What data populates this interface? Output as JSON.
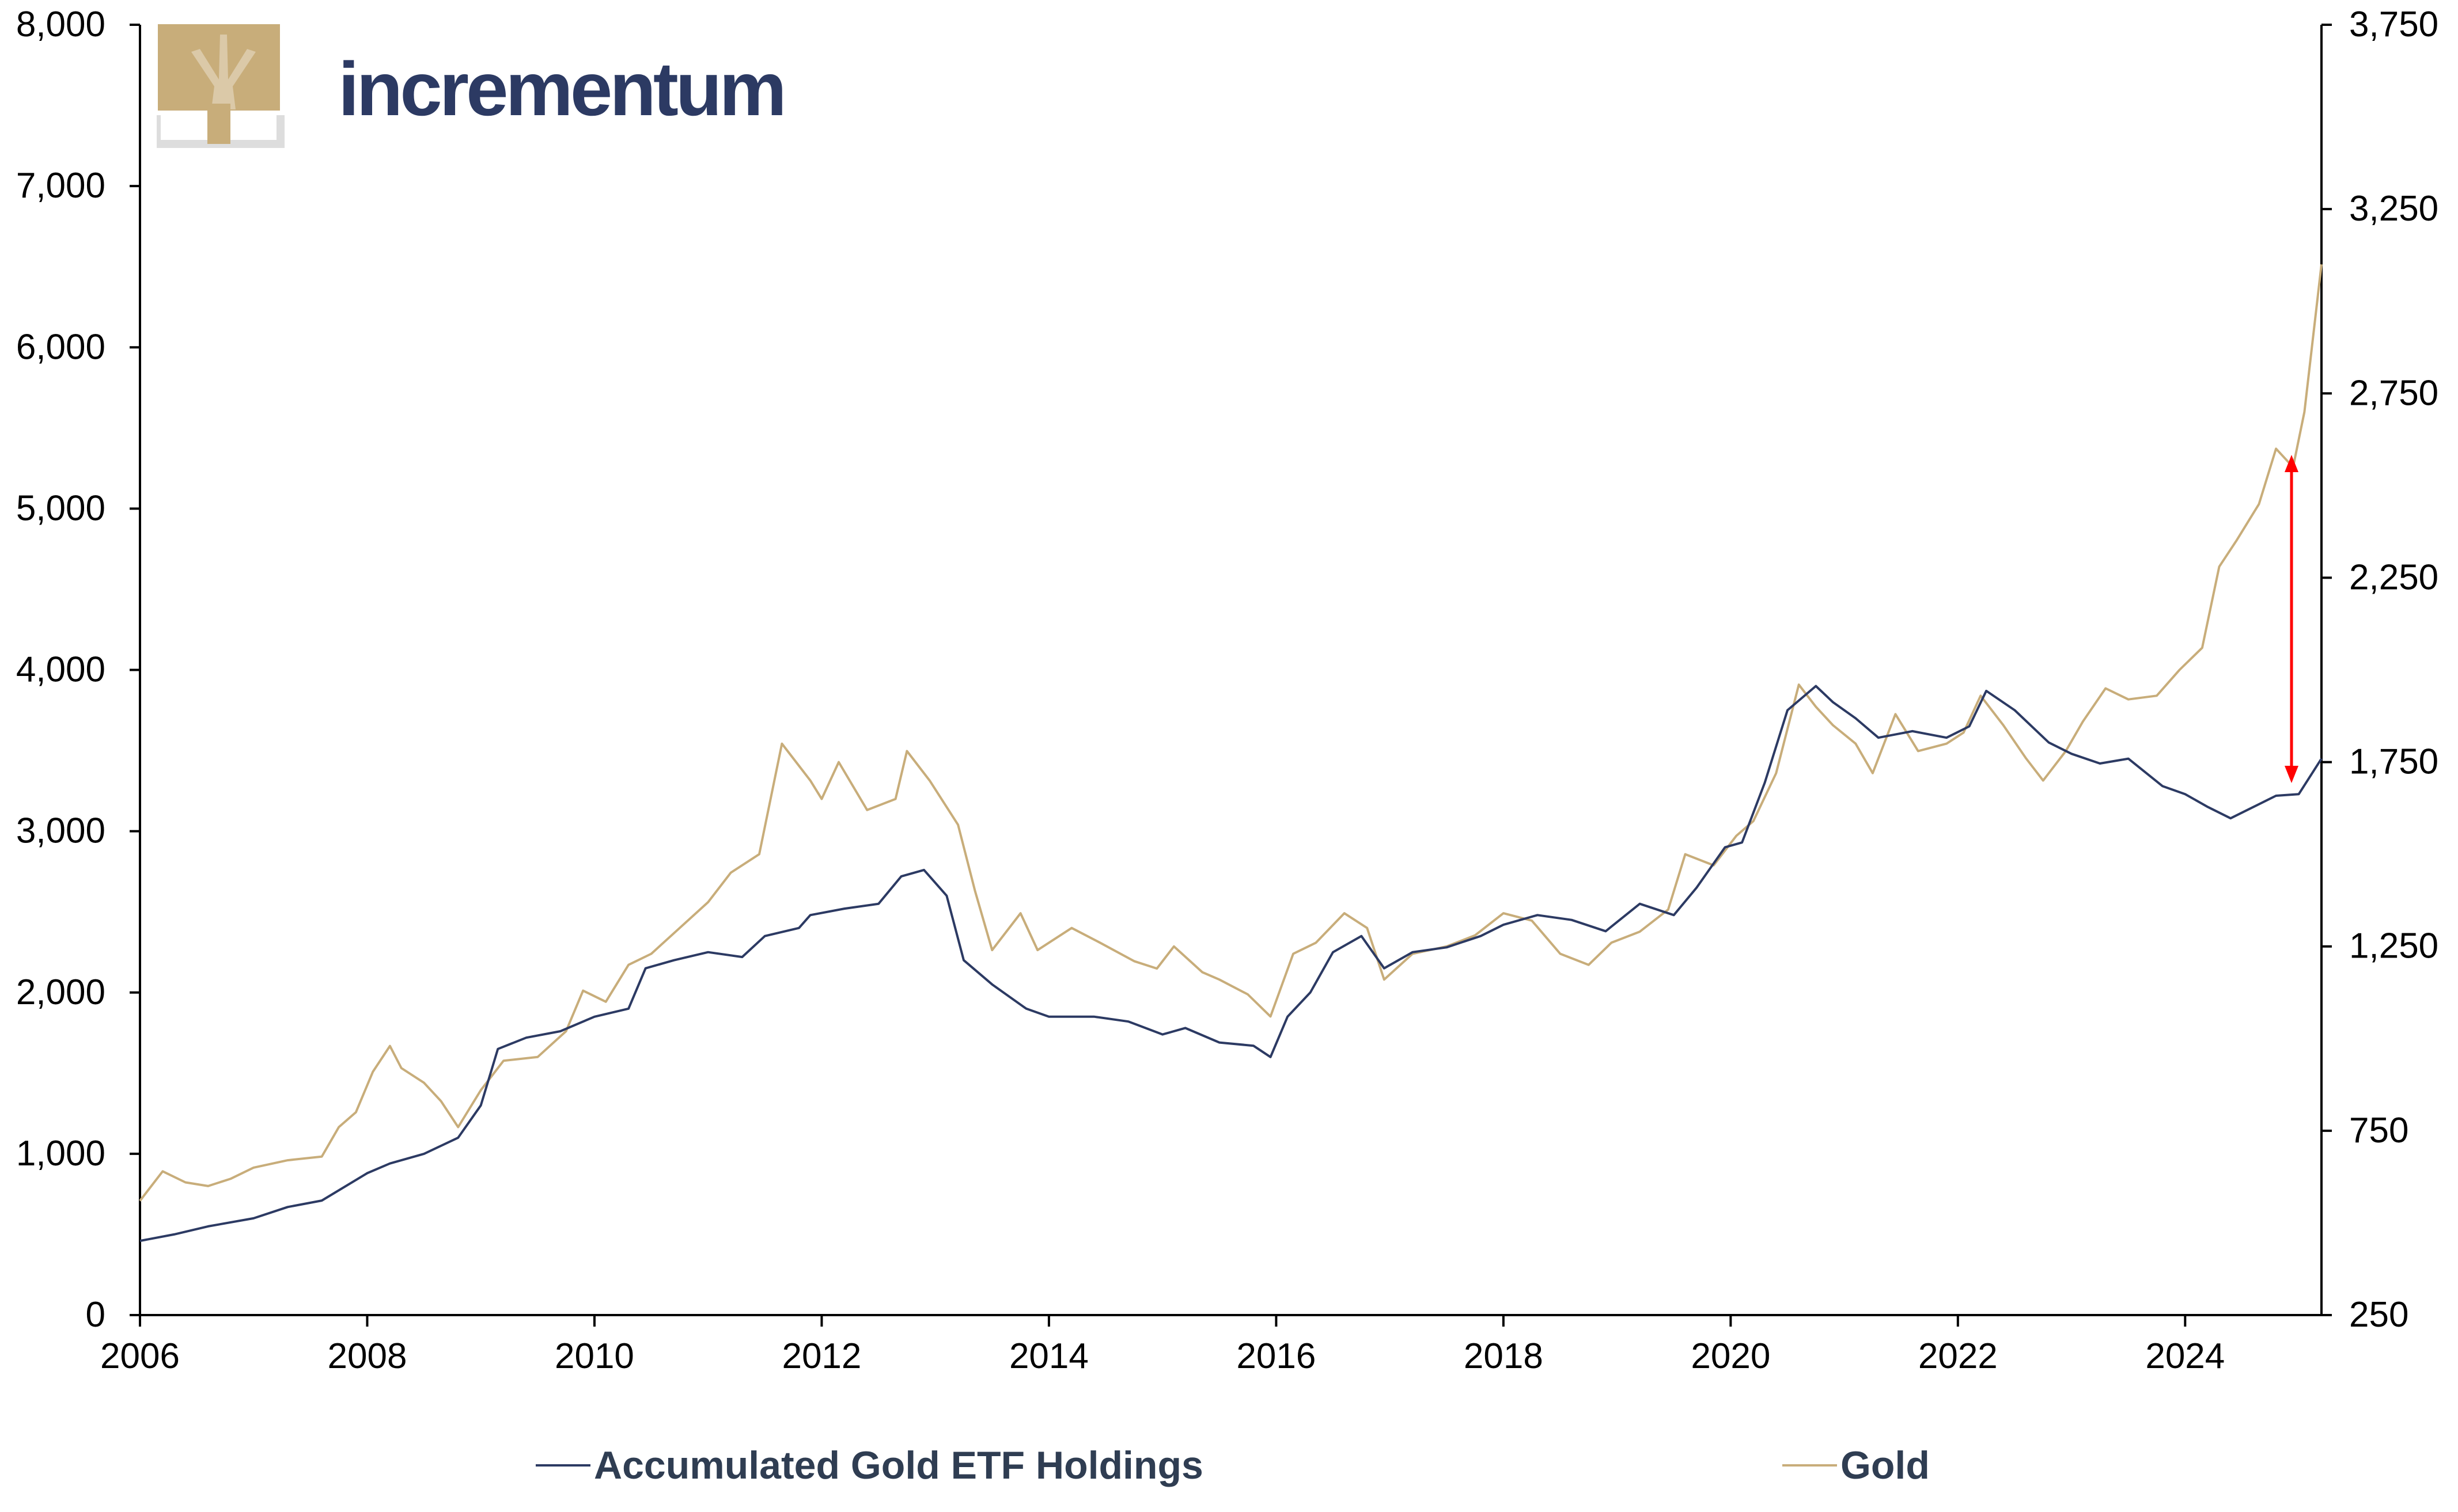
{
  "colors": {
    "etf": "#2c3a63",
    "gold": "#c8ad7a",
    "arrow": "#ff0000",
    "axis": "#000000"
  },
  "logo": {
    "text": "incrementum",
    "icon": "tree-icon"
  },
  "legend": {
    "etf": "Accumulated Gold ETF Holdings",
    "gold": "Gold"
  },
  "chart_data": {
    "type": "line",
    "x_range": [
      2006,
      2025.2
    ],
    "x_ticks": [
      "2006",
      "2008",
      "2010",
      "2012",
      "2014",
      "2016",
      "2018",
      "2020",
      "2022",
      "2024"
    ],
    "y_left": {
      "range": [
        0,
        8000
      ],
      "ticks": [
        "0",
        "1,000",
        "2,000",
        "3,000",
        "4,000",
        "5,000",
        "6,000",
        "7,000",
        "8,000"
      ]
    },
    "y_right": {
      "range": [
        250,
        3750
      ],
      "ticks": [
        "250",
        "750",
        "1,250",
        "1,750",
        "2,250",
        "2,750",
        "3,250",
        "3,750"
      ]
    },
    "grid": false,
    "legend_position": "bottom",
    "series": [
      {
        "name": "Accumulated Gold ETF Holdings",
        "axis": "left",
        "points": [
          [
            2006.0,
            460
          ],
          [
            2006.3,
            500
          ],
          [
            2006.6,
            550
          ],
          [
            2007.0,
            600
          ],
          [
            2007.3,
            670
          ],
          [
            2007.6,
            710
          ],
          [
            2008.0,
            880
          ],
          [
            2008.2,
            940
          ],
          [
            2008.5,
            1000
          ],
          [
            2008.8,
            1100
          ],
          [
            2009.0,
            1300
          ],
          [
            2009.15,
            1650
          ],
          [
            2009.4,
            1720
          ],
          [
            2009.7,
            1760
          ],
          [
            2010.0,
            1850
          ],
          [
            2010.3,
            1900
          ],
          [
            2010.45,
            2150
          ],
          [
            2010.7,
            2200
          ],
          [
            2011.0,
            2250
          ],
          [
            2011.3,
            2220
          ],
          [
            2011.5,
            2350
          ],
          [
            2011.8,
            2400
          ],
          [
            2011.9,
            2480
          ],
          [
            2012.2,
            2520
          ],
          [
            2012.5,
            2550
          ],
          [
            2012.7,
            2720
          ],
          [
            2012.9,
            2760
          ],
          [
            2013.1,
            2600
          ],
          [
            2013.25,
            2200
          ],
          [
            2013.5,
            2050
          ],
          [
            2013.8,
            1900
          ],
          [
            2014.0,
            1850
          ],
          [
            2014.4,
            1850
          ],
          [
            2014.7,
            1820
          ],
          [
            2015.0,
            1740
          ],
          [
            2015.2,
            1780
          ],
          [
            2015.5,
            1690
          ],
          [
            2015.8,
            1670
          ],
          [
            2015.95,
            1600
          ],
          [
            2016.1,
            1850
          ],
          [
            2016.3,
            2000
          ],
          [
            2016.5,
            2250
          ],
          [
            2016.75,
            2350
          ],
          [
            2016.95,
            2150
          ],
          [
            2017.2,
            2250
          ],
          [
            2017.5,
            2280
          ],
          [
            2017.8,
            2350
          ],
          [
            2018.0,
            2420
          ],
          [
            2018.3,
            2480
          ],
          [
            2018.6,
            2450
          ],
          [
            2018.9,
            2380
          ],
          [
            2019.2,
            2550
          ],
          [
            2019.5,
            2480
          ],
          [
            2019.7,
            2650
          ],
          [
            2019.95,
            2900
          ],
          [
            2020.1,
            2930
          ],
          [
            2020.3,
            3300
          ],
          [
            2020.5,
            3750
          ],
          [
            2020.75,
            3900
          ],
          [
            2020.9,
            3800
          ],
          [
            2021.1,
            3700
          ],
          [
            2021.3,
            3580
          ],
          [
            2021.6,
            3620
          ],
          [
            2021.9,
            3580
          ],
          [
            2022.1,
            3650
          ],
          [
            2022.25,
            3870
          ],
          [
            2022.5,
            3750
          ],
          [
            2022.8,
            3550
          ],
          [
            2023.0,
            3480
          ],
          [
            2023.25,
            3420
          ],
          [
            2023.5,
            3450
          ],
          [
            2023.8,
            3280
          ],
          [
            2024.0,
            3230
          ],
          [
            2024.2,
            3150
          ],
          [
            2024.4,
            3080
          ],
          [
            2024.6,
            3150
          ],
          [
            2024.8,
            3220
          ],
          [
            2025.0,
            3230
          ],
          [
            2025.2,
            3450
          ]
        ]
      },
      {
        "name": "Gold",
        "axis": "right",
        "points": [
          [
            2006.0,
            560
          ],
          [
            2006.2,
            640
          ],
          [
            2006.4,
            610
          ],
          [
            2006.6,
            600
          ],
          [
            2006.8,
            620
          ],
          [
            2007.0,
            650
          ],
          [
            2007.3,
            670
          ],
          [
            2007.6,
            680
          ],
          [
            2007.75,
            760
          ],
          [
            2007.9,
            800
          ],
          [
            2008.05,
            910
          ],
          [
            2008.2,
            980
          ],
          [
            2008.3,
            920
          ],
          [
            2008.5,
            880
          ],
          [
            2008.65,
            830
          ],
          [
            2008.8,
            760
          ],
          [
            2009.0,
            860
          ],
          [
            2009.2,
            940
          ],
          [
            2009.5,
            950
          ],
          [
            2009.75,
            1020
          ],
          [
            2009.9,
            1130
          ],
          [
            2010.1,
            1100
          ],
          [
            2010.3,
            1200
          ],
          [
            2010.5,
            1230
          ],
          [
            2010.75,
            1300
          ],
          [
            2011.0,
            1370
          ],
          [
            2011.2,
            1450
          ],
          [
            2011.45,
            1500
          ],
          [
            2011.65,
            1800
          ],
          [
            2011.9,
            1700
          ],
          [
            2012.0,
            1650
          ],
          [
            2012.15,
            1750
          ],
          [
            2012.4,
            1620
          ],
          [
            2012.65,
            1650
          ],
          [
            2012.75,
            1780
          ],
          [
            2012.95,
            1700
          ],
          [
            2013.2,
            1580
          ],
          [
            2013.35,
            1400
          ],
          [
            2013.5,
            1240
          ],
          [
            2013.75,
            1340
          ],
          [
            2013.9,
            1240
          ],
          [
            2014.2,
            1300
          ],
          [
            2014.45,
            1260
          ],
          [
            2014.75,
            1210
          ],
          [
            2014.95,
            1190
          ],
          [
            2015.1,
            1250
          ],
          [
            2015.35,
            1180
          ],
          [
            2015.5,
            1160
          ],
          [
            2015.75,
            1120
          ],
          [
            2015.95,
            1060
          ],
          [
            2016.15,
            1230
          ],
          [
            2016.35,
            1260
          ],
          [
            2016.6,
            1340
          ],
          [
            2016.8,
            1300
          ],
          [
            2016.95,
            1160
          ],
          [
            2017.2,
            1230
          ],
          [
            2017.5,
            1250
          ],
          [
            2017.75,
            1280
          ],
          [
            2018.0,
            1340
          ],
          [
            2018.25,
            1320
          ],
          [
            2018.5,
            1230
          ],
          [
            2018.75,
            1200
          ],
          [
            2018.95,
            1260
          ],
          [
            2019.2,
            1290
          ],
          [
            2019.45,
            1350
          ],
          [
            2019.6,
            1500
          ],
          [
            2019.85,
            1470
          ],
          [
            2020.05,
            1550
          ],
          [
            2020.2,
            1590
          ],
          [
            2020.4,
            1720
          ],
          [
            2020.6,
            1960
          ],
          [
            2020.75,
            1900
          ],
          [
            2020.9,
            1850
          ],
          [
            2021.1,
            1800
          ],
          [
            2021.25,
            1720
          ],
          [
            2021.45,
            1880
          ],
          [
            2021.65,
            1780
          ],
          [
            2021.9,
            1800
          ],
          [
            2022.05,
            1830
          ],
          [
            2022.2,
            1930
          ],
          [
            2022.4,
            1850
          ],
          [
            2022.6,
            1760
          ],
          [
            2022.75,
            1700
          ],
          [
            2022.95,
            1780
          ],
          [
            2023.1,
            1860
          ],
          [
            2023.3,
            1950
          ],
          [
            2023.5,
            1920
          ],
          [
            2023.75,
            1930
          ],
          [
            2023.95,
            2000
          ],
          [
            2024.15,
            2060
          ],
          [
            2024.3,
            2280
          ],
          [
            2024.45,
            2350
          ],
          [
            2024.65,
            2450
          ],
          [
            2024.8,
            2600
          ],
          [
            2024.95,
            2550
          ],
          [
            2025.05,
            2700
          ],
          [
            2025.2,
            3100
          ]
        ]
      }
    ]
  }
}
